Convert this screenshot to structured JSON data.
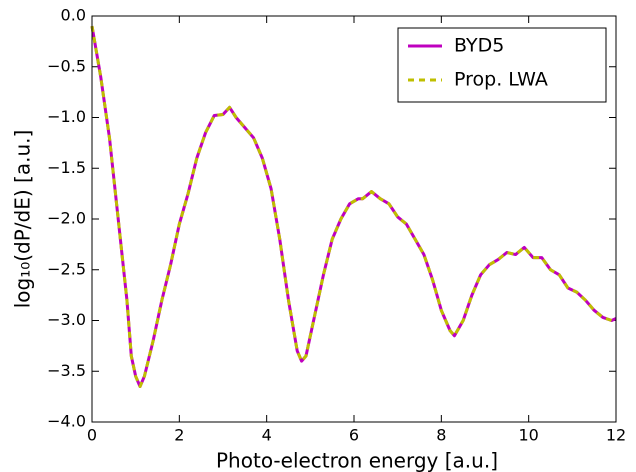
{
  "chart_data": {
    "type": "line",
    "xlabel": "Photo-electron energy [a.u.]",
    "ylabel": "log₁₀(dP/dE) [a.u.]",
    "x": [
      0,
      0.2,
      0.4,
      0.6,
      0.8,
      0.9,
      1.0,
      1.1,
      1.2,
      1.4,
      1.6,
      1.8,
      2.0,
      2.2,
      2.4,
      2.6,
      2.8,
      3.0,
      3.15,
      3.3,
      3.5,
      3.7,
      3.9,
      4.1,
      4.3,
      4.5,
      4.7,
      4.8,
      4.9,
      5.1,
      5.3,
      5.5,
      5.7,
      5.9,
      6.1,
      6.2,
      6.4,
      6.6,
      6.8,
      7.0,
      7.2,
      7.4,
      7.6,
      7.8,
      8.0,
      8.2,
      8.3,
      8.5,
      8.7,
      8.9,
      9.1,
      9.3,
      9.5,
      9.7,
      9.9,
      10.1,
      10.3,
      10.5,
      10.7,
      10.9,
      11.1,
      11.3,
      11.5,
      11.7,
      11.9,
      12.0
    ],
    "series": [
      {
        "name": "BYD5",
        "color": "#bf00bf",
        "linestyle": "solid",
        "values": [
          -0.1,
          -0.6,
          -1.2,
          -2.0,
          -2.8,
          -3.35,
          -3.55,
          -3.65,
          -3.55,
          -3.2,
          -2.8,
          -2.45,
          -2.05,
          -1.75,
          -1.4,
          -1.15,
          -0.98,
          -0.97,
          -0.9,
          -1.0,
          -1.1,
          -1.2,
          -1.4,
          -1.7,
          -2.2,
          -2.8,
          -3.3,
          -3.4,
          -3.35,
          -2.95,
          -2.55,
          -2.2,
          -2.0,
          -1.85,
          -1.8,
          -1.8,
          -1.73,
          -1.8,
          -1.85,
          -1.98,
          -2.05,
          -2.2,
          -2.35,
          -2.6,
          -2.9,
          -3.1,
          -3.15,
          -3.0,
          -2.75,
          -2.55,
          -2.45,
          -2.4,
          -2.33,
          -2.35,
          -2.28,
          -2.38,
          -2.38,
          -2.5,
          -2.55,
          -2.68,
          -2.72,
          -2.8,
          -2.9,
          -2.97,
          -3.0,
          -2.98
        ]
      },
      {
        "name": "Prop. LWA",
        "color": "#bfbf00",
        "linestyle": "dashed",
        "values": [
          -0.1,
          -0.6,
          -1.2,
          -2.0,
          -2.8,
          -3.35,
          -3.55,
          -3.65,
          -3.55,
          -3.2,
          -2.8,
          -2.45,
          -2.05,
          -1.75,
          -1.4,
          -1.15,
          -0.98,
          -0.97,
          -0.9,
          -1.0,
          -1.1,
          -1.2,
          -1.4,
          -1.7,
          -2.2,
          -2.8,
          -3.3,
          -3.4,
          -3.35,
          -2.95,
          -2.55,
          -2.2,
          -2.0,
          -1.85,
          -1.8,
          -1.8,
          -1.73,
          -1.8,
          -1.85,
          -1.98,
          -2.05,
          -2.2,
          -2.35,
          -2.6,
          -2.9,
          -3.1,
          -3.15,
          -3.0,
          -2.75,
          -2.55,
          -2.45,
          -2.4,
          -2.33,
          -2.35,
          -2.28,
          -2.38,
          -2.38,
          -2.5,
          -2.55,
          -2.68,
          -2.72,
          -2.8,
          -2.9,
          -2.97,
          -3.0,
          -2.98
        ]
      }
    ],
    "xlim": [
      0,
      12
    ],
    "xticks": [
      0,
      2,
      4,
      6,
      8,
      10,
      12
    ],
    "ylim": [
      -4,
      0
    ],
    "yticks": [
      {
        "value": -4,
        "label": "−4.0"
      },
      {
        "value": -3.5,
        "label": "−3.5"
      },
      {
        "value": -3,
        "label": "−3.0"
      },
      {
        "value": -2.5,
        "label": "−2.5"
      },
      {
        "value": -2,
        "label": "−2.0"
      },
      {
        "value": -1.5,
        "label": "−1.5"
      },
      {
        "value": -1,
        "label": "−1.0"
      },
      {
        "value": -0.5,
        "label": "−0.5"
      },
      {
        "value": 0,
        "label": "0.0"
      }
    ],
    "legend": "upper right"
  }
}
